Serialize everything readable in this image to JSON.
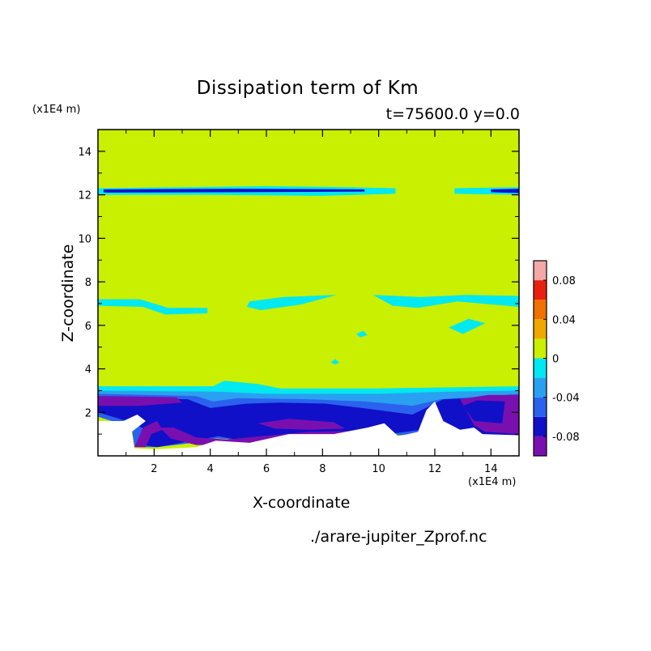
{
  "chart_data": {
    "type": "heatmap",
    "title": "Dissipation term of Km",
    "subtitle": "t=75600.0 y=0.0",
    "xlabel": "X-coordinate",
    "ylabel": "Z-coordinate",
    "x_unit": "(x1E4 m)",
    "y_unit": "(x1E4 m)",
    "xlim": [
      0,
      15
    ],
    "ylim": [
      0,
      15
    ],
    "x_ticks": [
      2,
      4,
      6,
      8,
      10,
      12,
      14
    ],
    "y_ticks": [
      2,
      4,
      6,
      8,
      10,
      12,
      14
    ],
    "colorbar": {
      "levels": [
        -0.1,
        -0.08,
        -0.06,
        -0.04,
        -0.02,
        0,
        0.02,
        0.04,
        0.06,
        0.08,
        0.1
      ],
      "colors": [
        "#7a0fb0",
        "#1010c8",
        "#2a62ee",
        "#2aa0f0",
        "#00e8f0",
        "#c8f000",
        "#f0a800",
        "#f07000",
        "#e82010",
        "#f4a8a8"
      ],
      "tick_labels": [
        "-0.08",
        "-0.04",
        "0",
        "0.04",
        "0.08"
      ],
      "tick_values": [
        -0.08,
        -0.04,
        0,
        0.04,
        0.08
      ]
    },
    "background_level_color": "#c8f000",
    "regions": [
      {
        "name": "negative band z~12",
        "color": "#00e8f0",
        "points": [
          [
            0,
            12.3
          ],
          [
            3,
            12.35
          ],
          [
            6,
            12.4
          ],
          [
            9,
            12.35
          ],
          [
            10.6,
            12.3
          ],
          [
            10.6,
            12.05
          ],
          [
            8,
            11.95
          ],
          [
            4,
            12.0
          ],
          [
            0,
            12.0
          ]
        ]
      },
      {
        "name": "negative band z~12 right",
        "color": "#00e8f0",
        "points": [
          [
            12.7,
            12.3
          ],
          [
            15,
            12.35
          ],
          [
            15,
            12.0
          ],
          [
            12.7,
            12.05
          ]
        ]
      },
      {
        "name": "strong band z~12",
        "color": "#1010c8",
        "points": [
          [
            0.2,
            12.25
          ],
          [
            5,
            12.28
          ],
          [
            9.5,
            12.25
          ],
          [
            9.5,
            12.15
          ],
          [
            5,
            12.12
          ],
          [
            0.2,
            12.1
          ]
        ]
      },
      {
        "name": "strong band z~12 right",
        "color": "#1010c8",
        "points": [
          [
            14,
            12.25
          ],
          [
            15,
            12.28
          ],
          [
            15,
            12.08
          ],
          [
            14,
            12.12
          ]
        ]
      },
      {
        "name": "band z~7 left",
        "color": "#00e8f0",
        "points": [
          [
            0,
            7.2
          ],
          [
            1.5,
            7.2
          ],
          [
            2.5,
            6.8
          ],
          [
            3.9,
            6.8
          ],
          [
            3.9,
            6.55
          ],
          [
            2.4,
            6.5
          ],
          [
            1.6,
            6.85
          ],
          [
            0,
            6.9
          ]
        ]
      },
      {
        "name": "band z~7 mid",
        "color": "#00e8f0",
        "points": [
          [
            5.4,
            7.1
          ],
          [
            6.6,
            7.3
          ],
          [
            8.5,
            7.4
          ],
          [
            7.2,
            6.95
          ],
          [
            5.8,
            6.7
          ],
          [
            5.3,
            6.85
          ]
        ]
      },
      {
        "name": "band z~7 right",
        "color": "#00e8f0",
        "points": [
          [
            9.8,
            7.4
          ],
          [
            11.5,
            7.3
          ],
          [
            13.1,
            7.4
          ],
          [
            15,
            7.35
          ],
          [
            15,
            6.85
          ],
          [
            12.8,
            7.1
          ],
          [
            11.4,
            6.8
          ],
          [
            10.5,
            6.9
          ]
        ]
      },
      {
        "name": "patch z~6",
        "color": "#00e8f0",
        "points": [
          [
            12.5,
            5.9
          ],
          [
            13.2,
            6.3
          ],
          [
            13.8,
            6.1
          ],
          [
            13.0,
            5.6
          ]
        ]
      },
      {
        "name": "dot z~5.6",
        "color": "#00e8f0",
        "points": [
          [
            9.2,
            5.6
          ],
          [
            9.45,
            5.75
          ],
          [
            9.6,
            5.55
          ],
          [
            9.35,
            5.45
          ]
        ]
      },
      {
        "name": "dot z~4.3",
        "color": "#00e8f0",
        "points": [
          [
            8.3,
            4.3
          ],
          [
            8.45,
            4.45
          ],
          [
            8.6,
            4.3
          ],
          [
            8.45,
            4.2
          ]
        ]
      },
      {
        "name": "bottom cyan",
        "color": "#00e8f0",
        "points": [
          [
            0,
            3.2
          ],
          [
            4.1,
            3.2
          ],
          [
            4.5,
            3.45
          ],
          [
            5.7,
            3.3
          ],
          [
            6.5,
            3.1
          ],
          [
            10,
            3.1
          ],
          [
            15,
            3.2
          ],
          [
            15,
            2.0
          ],
          [
            13,
            2.2
          ],
          [
            11,
            2.0
          ],
          [
            9,
            2.1
          ],
          [
            6,
            2.3
          ],
          [
            3,
            2.2
          ],
          [
            0,
            2.3
          ]
        ]
      },
      {
        "name": "bottom light blue",
        "color": "#2aa0f0",
        "points": [
          [
            0,
            3.0
          ],
          [
            4.2,
            2.95
          ],
          [
            6,
            2.85
          ],
          [
            10,
            2.85
          ],
          [
            12.5,
            2.95
          ],
          [
            15,
            3.0
          ],
          [
            15,
            1.5
          ],
          [
            12,
            1.2
          ],
          [
            9,
            1.0
          ],
          [
            6,
            0.9
          ],
          [
            4.5,
            1.3
          ],
          [
            3.5,
            1.2
          ],
          [
            2,
            2.0
          ],
          [
            0,
            2.1
          ]
        ]
      },
      {
        "name": "bottom blue",
        "color": "#2a62ee",
        "points": [
          [
            0,
            2.85
          ],
          [
            3.5,
            2.75
          ],
          [
            4.1,
            2.5
          ],
          [
            5,
            2.65
          ],
          [
            7.5,
            2.6
          ],
          [
            9.5,
            2.5
          ],
          [
            11.2,
            2.3
          ],
          [
            12.2,
            2.6
          ],
          [
            14,
            2.75
          ],
          [
            15,
            2.85
          ],
          [
            15,
            0.9
          ],
          [
            12.2,
            1.2
          ],
          [
            11.5,
            1.0
          ],
          [
            10,
            0.9
          ],
          [
            8,
            0.8
          ],
          [
            5.5,
            0.7
          ],
          [
            4.2,
            0.8
          ],
          [
            3.4,
            0.6
          ],
          [
            2.1,
            0.4
          ],
          [
            1.3,
            0.4
          ],
          [
            1.2,
            1.3
          ],
          [
            0,
            1.8
          ]
        ]
      },
      {
        "name": "bottom dark blue",
        "color": "#1010c8",
        "points": [
          [
            0,
            2.7
          ],
          [
            3.2,
            2.6
          ],
          [
            4.0,
            2.2
          ],
          [
            5.3,
            2.4
          ],
          [
            6.5,
            2.45
          ],
          [
            8.1,
            2.4
          ],
          [
            9.4,
            2.2
          ],
          [
            11.2,
            1.9
          ],
          [
            12.3,
            2.6
          ],
          [
            14.2,
            2.7
          ],
          [
            15,
            2.7
          ],
          [
            15,
            0.9
          ],
          [
            13.3,
            1.0
          ],
          [
            12.2,
            1.5
          ],
          [
            11.5,
            1.2
          ],
          [
            9.8,
            0.9
          ],
          [
            7.5,
            0.85
          ],
          [
            5.5,
            0.6
          ],
          [
            4.3,
            0.9
          ],
          [
            3.4,
            0.7
          ],
          [
            2.1,
            0.4
          ],
          [
            1.6,
            0.5
          ],
          [
            1.8,
            1.1
          ],
          [
            1.3,
            1.5
          ],
          [
            0,
            2.0
          ]
        ]
      },
      {
        "name": "purple top-left",
        "color": "#7a0fb0",
        "points": [
          [
            0,
            2.75
          ],
          [
            2.8,
            2.7
          ],
          [
            3.0,
            2.45
          ],
          [
            1.5,
            2.3
          ],
          [
            0,
            2.3
          ]
        ]
      },
      {
        "name": "purple hook",
        "color": "#7a0fb0",
        "points": [
          [
            1.3,
            0.4
          ],
          [
            1.6,
            1.3
          ],
          [
            2.1,
            1.6
          ],
          [
            2.3,
            1.2
          ],
          [
            1.9,
            1.0
          ],
          [
            1.7,
            0.4
          ]
        ]
      },
      {
        "name": "purple bottom band",
        "color": "#7a0fb0",
        "points": [
          [
            2.2,
            1.3
          ],
          [
            2.6,
            0.8
          ],
          [
            3.5,
            0.5
          ],
          [
            5.5,
            0.5
          ],
          [
            7.5,
            0.8
          ],
          [
            9.5,
            0.9
          ],
          [
            10.1,
            1.3
          ],
          [
            9.3,
            1.15
          ],
          [
            7.5,
            1.1
          ],
          [
            5.8,
            0.9
          ],
          [
            4.6,
            0.75
          ],
          [
            3.5,
            0.85
          ],
          [
            2.7,
            1.3
          ]
        ]
      },
      {
        "name": "purple mid",
        "color": "#7a0fb0",
        "points": [
          [
            5.7,
            1.5
          ],
          [
            6.8,
            1.7
          ],
          [
            8.4,
            1.55
          ],
          [
            8.8,
            1.25
          ],
          [
            7.6,
            1.2
          ],
          [
            6.3,
            1.25
          ]
        ]
      },
      {
        "name": "purple right",
        "color": "#7a0fb0",
        "points": [
          [
            12.9,
            2.6
          ],
          [
            13.9,
            2.8
          ],
          [
            15,
            2.8
          ],
          [
            15,
            1.0
          ],
          [
            13.8,
            1.1
          ],
          [
            13.4,
            1.4
          ]
        ]
      },
      {
        "name": "blue right hole",
        "color": "#1010c8",
        "points": [
          [
            13.0,
            2.3
          ],
          [
            13.5,
            2.55
          ],
          [
            14.5,
            2.5
          ],
          [
            14.4,
            1.5
          ],
          [
            13.4,
            1.6
          ]
        ]
      },
      {
        "name": "white bottom",
        "color": "#ffffff",
        "points": [
          [
            0,
            0
          ],
          [
            15,
            0
          ],
          [
            15,
            0.95
          ],
          [
            13.7,
            1.0
          ],
          [
            13.4,
            1.3
          ],
          [
            12.9,
            1.2
          ],
          [
            12.3,
            1.6
          ],
          [
            12.0,
            2.5
          ],
          [
            11.7,
            2.1
          ],
          [
            11.4,
            1.1
          ],
          [
            10.7,
            0.9
          ],
          [
            10.2,
            1.5
          ],
          [
            9.6,
            1.3
          ],
          [
            8.4,
            1.0
          ],
          [
            6.8,
            1.0
          ],
          [
            5.4,
            0.6
          ],
          [
            4.2,
            0.7
          ],
          [
            3.5,
            0.4
          ],
          [
            2.0,
            0.3
          ],
          [
            1.3,
            0.35
          ],
          [
            1.2,
            1.1
          ],
          [
            1.7,
            1.6
          ],
          [
            1.4,
            1.9
          ],
          [
            0.9,
            1.6
          ],
          [
            0,
            1.6
          ]
        ]
      }
    ]
  }
}
